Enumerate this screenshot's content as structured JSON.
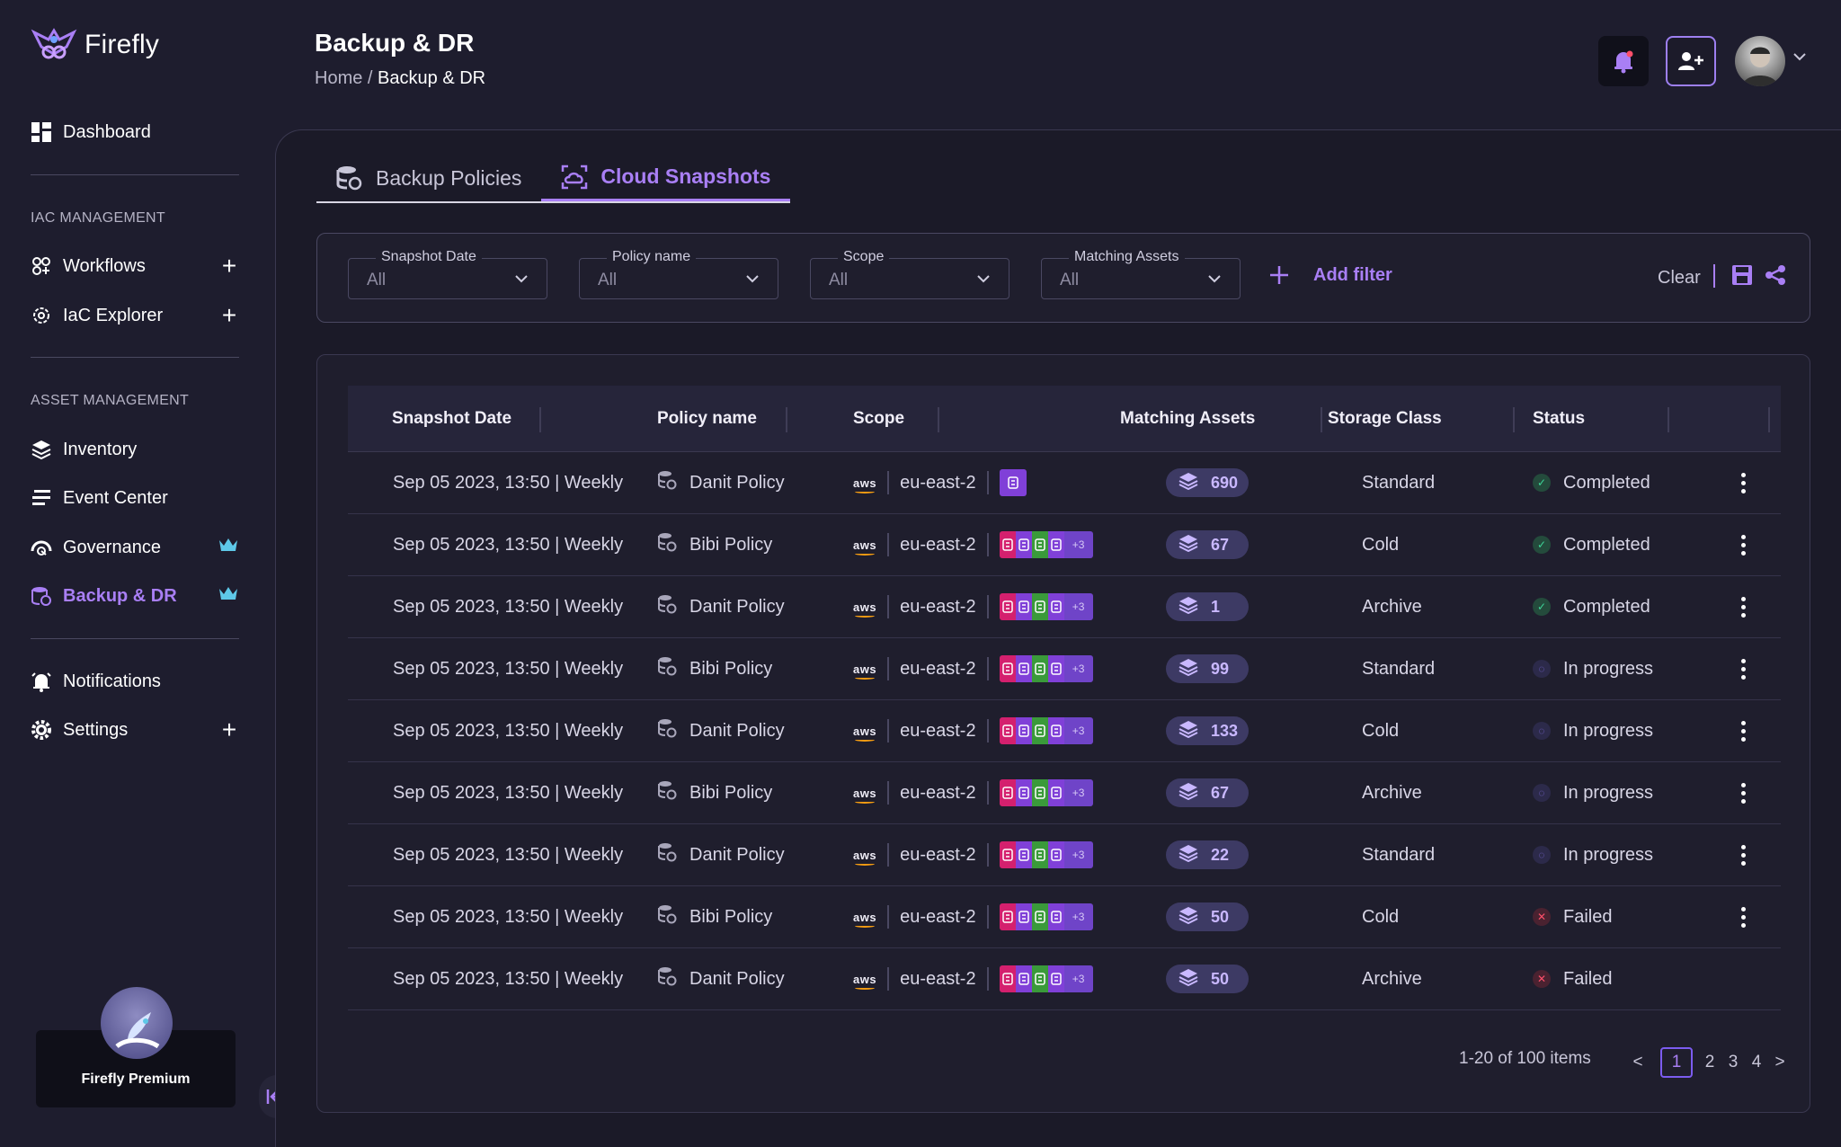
{
  "app": {
    "brand": "Firefly",
    "premium_label": "Firefly Premium"
  },
  "sidebar": {
    "dashboard": "Dashboard",
    "section_iac": "IAC MANAGEMENT",
    "workflows": "Workflows",
    "iac_explorer": "IaC Explorer",
    "section_asset": "ASSET MANAGEMENT",
    "inventory": "Inventory",
    "event_center": "Event Center",
    "governance": "Governance",
    "backup_dr": "Backup & DR",
    "notifications": "Notifications",
    "settings": "Settings"
  },
  "header": {
    "title": "Backup & DR",
    "breadcrumb_home": "Home",
    "breadcrumb_sep": "/",
    "breadcrumb_current": "Backup & DR"
  },
  "tabs": {
    "backup_policies": "Backup Policies",
    "cloud_snapshots": "Cloud Snapshots"
  },
  "filters": {
    "snapshot_date": {
      "label": "Snapshot Date",
      "value": "All"
    },
    "policy_name": {
      "label": "Policy name",
      "value": "All"
    },
    "scope": {
      "label": "Scope",
      "value": "All"
    },
    "matching_assets": {
      "label": "Matching Assets",
      "value": "All"
    },
    "add_filter": "Add filter",
    "clear": "Clear"
  },
  "table": {
    "headers": {
      "snapshot_date": "Snapshot Date",
      "policy_name": "Policy name",
      "scope": "Scope",
      "matching_assets": "Matching Assets",
      "storage_class": "Storage Class",
      "status": "Status"
    },
    "rows": [
      {
        "date": "Sep 05 2023, 13:50 | Weekly",
        "policy": "Danit Policy",
        "provider": "aws",
        "region": "eu-east-2",
        "services": "single",
        "assets": "690",
        "storage": "Standard",
        "status": "Completed",
        "status_kind": "completed"
      },
      {
        "date": "Sep 05 2023, 13:50 | Weekly",
        "policy": "Bibi Policy",
        "provider": "aws",
        "region": "eu-east-2",
        "services": "group",
        "more": "+3",
        "assets": "67",
        "storage": "Cold",
        "status": "Completed",
        "status_kind": "completed"
      },
      {
        "date": "Sep 05 2023, 13:50 | Weekly",
        "policy": "Danit Policy",
        "provider": "aws",
        "region": "eu-east-2",
        "services": "group",
        "more": "+3",
        "assets": "1",
        "storage": "Archive",
        "status": "Completed",
        "status_kind": "completed"
      },
      {
        "date": "Sep 05 2023, 13:50 | Weekly",
        "policy": "Bibi Policy",
        "provider": "aws",
        "region": "eu-east-2",
        "services": "group",
        "more": "+3",
        "assets": "99",
        "storage": "Standard",
        "status": "In progress",
        "status_kind": "inprogress"
      },
      {
        "date": "Sep 05 2023, 13:50 | Weekly",
        "policy": "Danit Policy",
        "provider": "aws",
        "region": "eu-east-2",
        "services": "group",
        "more": "+3",
        "assets": "133",
        "storage": "Cold",
        "status": "In progress",
        "status_kind": "inprogress"
      },
      {
        "date": "Sep 05 2023, 13:50 | Weekly",
        "policy": "Bibi Policy",
        "provider": "aws",
        "region": "eu-east-2",
        "services": "group",
        "more": "+3",
        "assets": "67",
        "storage": "Archive",
        "status": "In progress",
        "status_kind": "inprogress"
      },
      {
        "date": "Sep 05 2023, 13:50 | Weekly",
        "policy": "Danit Policy",
        "provider": "aws",
        "region": "eu-east-2",
        "services": "group",
        "more": "+3",
        "assets": "22",
        "storage": "Standard",
        "status": "In progress",
        "status_kind": "inprogress"
      },
      {
        "date": "Sep 05 2023, 13:50 | Weekly",
        "policy": "Bibi Policy",
        "provider": "aws",
        "region": "eu-east-2",
        "services": "group",
        "more": "+3",
        "assets": "50",
        "storage": "Cold",
        "status": "Failed",
        "status_kind": "failed"
      },
      {
        "date": "Sep 05 2023, 13:50 | Weekly",
        "policy": "Danit Policy",
        "provider": "aws",
        "region": "eu-east-2",
        "services": "group",
        "more": "+3",
        "assets": "50",
        "storage": "Archive",
        "status": "Failed",
        "status_kind": "failed",
        "no_menu": true
      }
    ]
  },
  "pagination": {
    "info": "1-20 of 100 items",
    "prev": "<",
    "pages": [
      "1",
      "2",
      "3",
      "4"
    ],
    "next": ">"
  },
  "colors": {
    "accent": "#a97ff5",
    "completed": "#3ed598",
    "in_progress": "#7c6ad8",
    "failed": "#ff4f6a"
  }
}
